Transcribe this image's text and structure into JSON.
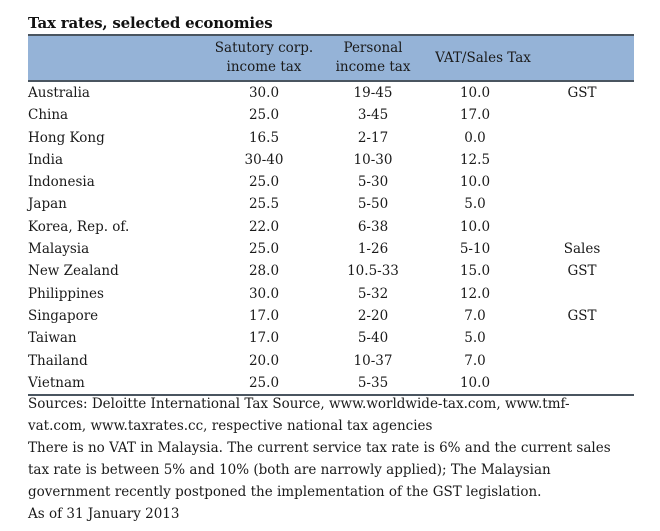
{
  "title": "Tax rates, selected economies",
  "table": {
    "headers": {
      "country": "",
      "corp": "Satutory corp.\nincome tax",
      "personal": "Personal\nincome tax",
      "vat": "VAT/Sales Tax",
      "note": ""
    },
    "rows": [
      {
        "country": "Australia",
        "corp": "30.0",
        "personal": "19-45",
        "vat": "10.0",
        "note": "GST"
      },
      {
        "country": "China",
        "corp": "25.0",
        "personal": "3-45",
        "vat": "17.0",
        "note": ""
      },
      {
        "country": "Hong Kong",
        "corp": "16.5",
        "personal": "2-17",
        "vat": "0.0",
        "note": ""
      },
      {
        "country": "India",
        "corp": "30-40",
        "personal": "10-30",
        "vat": "12.5",
        "note": ""
      },
      {
        "country": "Indonesia",
        "corp": "25.0",
        "personal": "5-30",
        "vat": "10.0",
        "note": ""
      },
      {
        "country": "Japan",
        "corp": "25.5",
        "personal": "5-50",
        "vat": "5.0",
        "note": ""
      },
      {
        "country": "Korea, Rep. of.",
        "corp": "22.0",
        "personal": "6-38",
        "vat": "10.0",
        "note": ""
      },
      {
        "country": "Malaysia",
        "corp": "25.0",
        "personal": "1-26",
        "vat": "5-10",
        "note": "Sales"
      },
      {
        "country": "New Zealand",
        "corp": "28.0",
        "personal": "10.5-33",
        "vat": "15.0",
        "note": "GST"
      },
      {
        "country": "Philippines",
        "corp": "30.0",
        "personal": "5-32",
        "vat": "12.0",
        "note": ""
      },
      {
        "country": "Singapore",
        "corp": "17.0",
        "personal": "2-20",
        "vat": "7.0",
        "note": "GST"
      },
      {
        "country": "Taiwan",
        "corp": "17.0",
        "personal": "5-40",
        "vat": "5.0",
        "note": ""
      },
      {
        "country": "Thailand",
        "corp": "20.0",
        "personal": "10-37",
        "vat": "7.0",
        "note": ""
      },
      {
        "country": "Vietnam",
        "corp": "25.0",
        "personal": "5-35",
        "vat": "10.0",
        "note": ""
      }
    ]
  },
  "notes": {
    "sources": "Sources: Deloitte International Tax Source,  www.worldwide-tax.com, www.tmf-\nvat.com, www.taxrates.cc, respective national tax agencies",
    "malaysia": "There is no VAT in Malaysia. The current service tax rate is 6% and  the current sales\ntax rate is between 5% and 10% (both are narrowly applied); The Malaysian\ngovernment recently postponed the implementation of the GST legislation.",
    "as_of": "As of 31 January 2013"
  },
  "colors": {
    "header_band": "#95b3d7",
    "rule": "#4a5560"
  }
}
